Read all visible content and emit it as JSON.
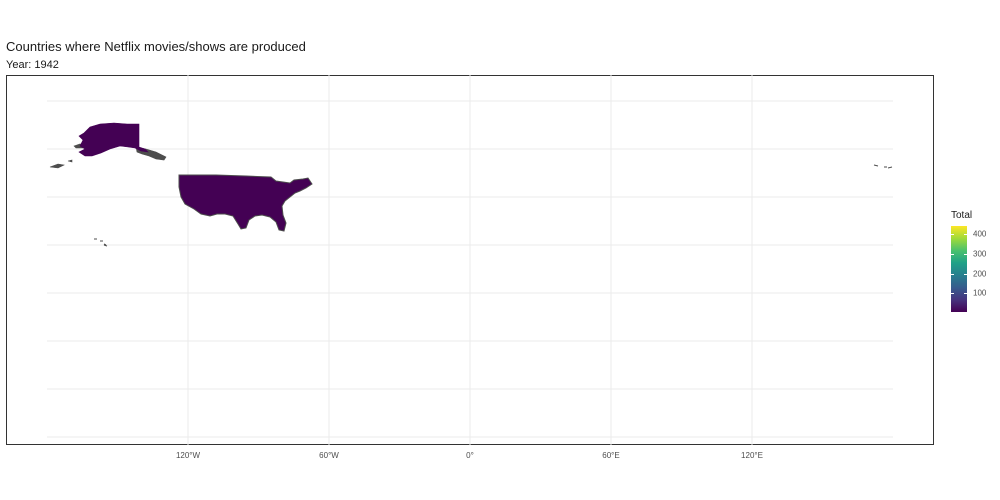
{
  "title": "Countries where Netflix movies/shows are produced",
  "subtitle": "Year: 1942",
  "map": {
    "projection": "equirectangular",
    "x_ticks": [
      "120°W",
      "60°W",
      "0°",
      "60°E",
      "120°E"
    ],
    "x_tick_degrees": [
      -120,
      -60,
      0,
      60,
      120
    ],
    "no_data_color": "#4d4d4d",
    "regions": [
      {
        "name": "United States (contiguous)",
        "total": 1,
        "color": "#440154"
      },
      {
        "name": "Alaska",
        "total": 1,
        "color": "#440154"
      },
      {
        "name": "Canadian Arctic / Aleutian islands",
        "total": null,
        "color": "#4d4d4d"
      },
      {
        "name": "Hawaii",
        "total": null,
        "color": "#4d4d4d"
      },
      {
        "name": "Western Aleutian islands",
        "total": null,
        "color": "#4d4d4d"
      }
    ]
  },
  "legend": {
    "title": "Total",
    "labels": [
      "400",
      "300",
      "200",
      "100"
    ],
    "values": [
      400,
      300,
      200,
      100
    ],
    "range": [
      1,
      440
    ],
    "palette": "viridis"
  }
}
